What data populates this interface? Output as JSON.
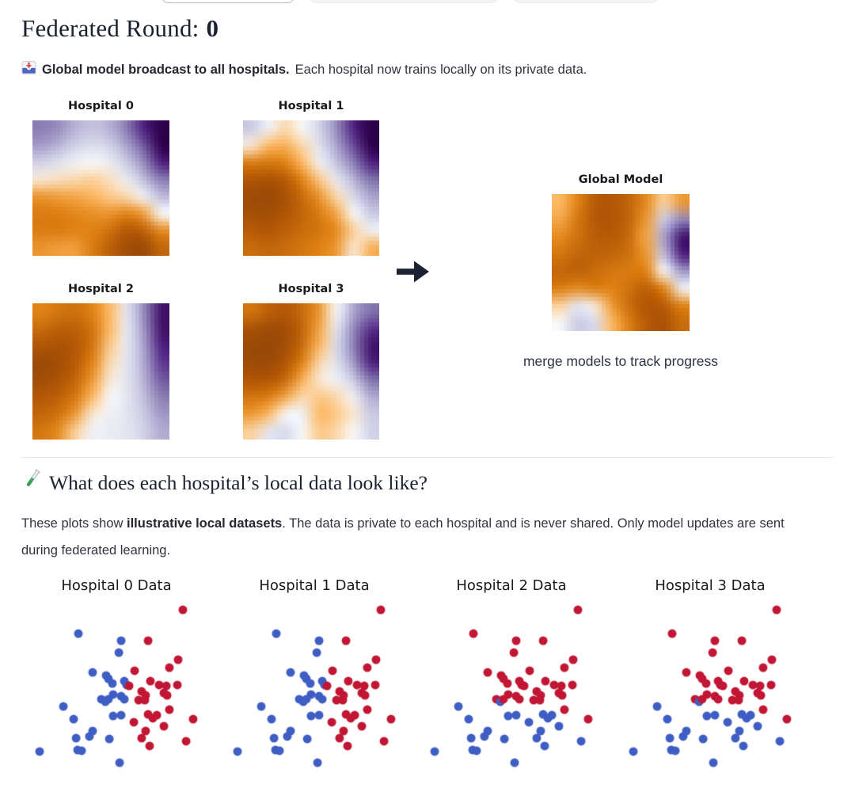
{
  "header": {
    "round_title": "Federated Round:",
    "round_number": "0"
  },
  "broadcast": {
    "icon": "inbox-tray-icon",
    "bold": "Global model broadcast to all hospitals.",
    "text": "Each hospital now trains locally on its private data."
  },
  "federated_panel": {
    "arrow_icon": "right-arrow-icon",
    "global_title": "Global Model",
    "caption": "merge models to track progress"
  },
  "local_data_section": {
    "icon": "test-tube-icon",
    "heading": "What does each hospital’s local data look like?",
    "body_pre": "These plots show ",
    "body_bold": "illustrative local datasets",
    "body_post": ". The data is private to each hospital and is never shared. Only model updates are sent during federated learning."
  },
  "chart_data": {
    "heatmaps": [
      {
        "id": "hm0",
        "type": "heatmap",
        "title": "Hospital 0",
        "colormap": "PuOr",
        "value_scale": "0=dark-orange, 0.5=white, 1=dark-purple",
        "grid": [
          [
            0.82,
            0.78,
            0.68,
            0.64,
            0.68,
            0.82,
            0.95,
            1.0
          ],
          [
            0.74,
            0.68,
            0.6,
            0.57,
            0.6,
            0.72,
            0.88,
            1.0
          ],
          [
            0.6,
            0.56,
            0.52,
            0.5,
            0.53,
            0.62,
            0.78,
            0.95
          ],
          [
            0.48,
            0.47,
            0.46,
            0.45,
            0.47,
            0.53,
            0.65,
            0.82
          ],
          [
            0.34,
            0.36,
            0.38,
            0.41,
            0.44,
            0.46,
            0.52,
            0.66
          ],
          [
            0.28,
            0.29,
            0.31,
            0.33,
            0.34,
            0.3,
            0.36,
            0.5
          ],
          [
            0.28,
            0.28,
            0.3,
            0.3,
            0.24,
            0.15,
            0.18,
            0.32
          ],
          [
            0.34,
            0.36,
            0.36,
            0.28,
            0.18,
            0.1,
            0.08,
            0.2
          ]
        ]
      },
      {
        "id": "hm1",
        "type": "heatmap",
        "title": "Hospital 1",
        "colormap": "PuOr",
        "grid": [
          [
            0.62,
            0.52,
            0.46,
            0.5,
            0.6,
            0.78,
            0.95,
            1.0
          ],
          [
            0.48,
            0.42,
            0.4,
            0.46,
            0.56,
            0.72,
            0.9,
            1.0
          ],
          [
            0.28,
            0.26,
            0.3,
            0.42,
            0.52,
            0.64,
            0.82,
            0.95
          ],
          [
            0.14,
            0.12,
            0.16,
            0.3,
            0.44,
            0.54,
            0.68,
            0.85
          ],
          [
            0.09,
            0.08,
            0.12,
            0.22,
            0.34,
            0.46,
            0.58,
            0.72
          ],
          [
            0.11,
            0.1,
            0.14,
            0.2,
            0.28,
            0.38,
            0.5,
            0.62
          ],
          [
            0.16,
            0.14,
            0.18,
            0.22,
            0.26,
            0.32,
            0.45,
            0.52
          ],
          [
            0.22,
            0.2,
            0.22,
            0.26,
            0.3,
            0.35,
            0.48,
            0.4
          ]
        ]
      },
      {
        "id": "hm2",
        "type": "heatmap",
        "title": "Hospital 2",
        "colormap": "PuOr",
        "grid": [
          [
            0.3,
            0.26,
            0.24,
            0.3,
            0.42,
            0.55,
            0.78,
            0.97
          ],
          [
            0.22,
            0.18,
            0.18,
            0.25,
            0.42,
            0.54,
            0.75,
            0.97
          ],
          [
            0.14,
            0.12,
            0.15,
            0.25,
            0.44,
            0.54,
            0.72,
            0.95
          ],
          [
            0.08,
            0.1,
            0.16,
            0.3,
            0.46,
            0.55,
            0.7,
            0.92
          ],
          [
            0.1,
            0.13,
            0.2,
            0.35,
            0.48,
            0.55,
            0.68,
            0.88
          ],
          [
            0.15,
            0.18,
            0.26,
            0.42,
            0.5,
            0.55,
            0.65,
            0.82
          ],
          [
            0.2,
            0.24,
            0.35,
            0.48,
            0.52,
            0.55,
            0.62,
            0.75
          ],
          [
            0.26,
            0.32,
            0.45,
            0.52,
            0.53,
            0.55,
            0.6,
            0.7
          ]
        ]
      },
      {
        "id": "hm3",
        "type": "heatmap",
        "title": "Hospital 3",
        "colormap": "PuOr",
        "grid": [
          [
            0.25,
            0.18,
            0.15,
            0.22,
            0.35,
            0.5,
            0.72,
            0.85
          ],
          [
            0.12,
            0.09,
            0.1,
            0.2,
            0.38,
            0.55,
            0.8,
            0.93
          ],
          [
            0.08,
            0.07,
            0.1,
            0.22,
            0.42,
            0.58,
            0.82,
            0.97
          ],
          [
            0.09,
            0.08,
            0.14,
            0.3,
            0.46,
            0.56,
            0.75,
            0.95
          ],
          [
            0.14,
            0.14,
            0.22,
            0.4,
            0.48,
            0.52,
            0.62,
            0.85
          ],
          [
            0.25,
            0.28,
            0.38,
            0.46,
            0.44,
            0.46,
            0.52,
            0.7
          ],
          [
            0.35,
            0.42,
            0.5,
            0.52,
            0.42,
            0.44,
            0.48,
            0.62
          ],
          [
            0.45,
            0.55,
            0.58,
            0.5,
            0.44,
            0.46,
            0.5,
            0.6
          ]
        ]
      },
      {
        "id": "hmg",
        "type": "heatmap",
        "title": "Global Model",
        "colormap": "PuOr",
        "grid": [
          [
            0.42,
            0.3,
            0.16,
            0.14,
            0.2,
            0.32,
            0.45,
            0.35
          ],
          [
            0.38,
            0.26,
            0.15,
            0.14,
            0.2,
            0.35,
            0.62,
            0.8
          ],
          [
            0.32,
            0.24,
            0.17,
            0.16,
            0.22,
            0.38,
            0.72,
            0.97
          ],
          [
            0.26,
            0.2,
            0.19,
            0.2,
            0.24,
            0.35,
            0.65,
            0.95
          ],
          [
            0.2,
            0.18,
            0.22,
            0.26,
            0.28,
            0.3,
            0.5,
            0.75
          ],
          [
            0.28,
            0.32,
            0.28,
            0.3,
            0.24,
            0.18,
            0.3,
            0.52
          ],
          [
            0.45,
            0.55,
            0.48,
            0.35,
            0.22,
            0.14,
            0.16,
            0.3
          ],
          [
            0.5,
            0.62,
            0.58,
            0.42,
            0.28,
            0.16,
            0.12,
            0.22
          ]
        ]
      }
    ],
    "colormap_stops": [
      "#7f3b08",
      "#b35806",
      "#e08214",
      "#fdb863",
      "#f7f7f7",
      "#d8daeb",
      "#b2abd2",
      "#8073ac",
      "#542788",
      "#2d004b"
    ],
    "scatter": {
      "type": "scatter",
      "titles": [
        "Hospital 0 Data",
        "Hospital 1 Data",
        "Hospital 2 Data",
        "Hospital 3 Data"
      ],
      "point_colors": {
        "blue": "#3f5ec4",
        "red": "#c11735"
      },
      "label_rule": "hospitals 0/1 use label c01 (blue-left / red-right); hospitals 2/3 use label c23 (red-top / blue-bottom)",
      "points": [
        [
          0.85,
          0.063,
          "R",
          "R"
        ],
        [
          0.3,
          0.188,
          "B",
          "R"
        ],
        [
          0.525,
          0.225,
          "B",
          "R"
        ],
        [
          0.667,
          0.225,
          "R",
          "R"
        ],
        [
          0.513,
          0.288,
          "B",
          "R"
        ],
        [
          0.825,
          0.325,
          "R",
          "R"
        ],
        [
          0.779,
          0.367,
          "R",
          "R"
        ],
        [
          0.375,
          0.392,
          "B",
          "R"
        ],
        [
          0.446,
          0.408,
          "B",
          "R"
        ],
        [
          0.458,
          0.425,
          "B",
          "R"
        ],
        [
          0.479,
          0.45,
          "B",
          "R"
        ],
        [
          0.596,
          0.383,
          "R",
          "R"
        ],
        [
          0.542,
          0.438,
          "B",
          "R"
        ],
        [
          0.554,
          0.458,
          "B",
          "R"
        ],
        [
          0.567,
          0.463,
          "R",
          "R"
        ],
        [
          0.679,
          0.438,
          "R",
          "R"
        ],
        [
          0.725,
          0.458,
          "R",
          "R"
        ],
        [
          0.763,
          0.463,
          "R",
          "R"
        ],
        [
          0.821,
          0.458,
          "R",
          "R"
        ],
        [
          0.633,
          0.492,
          "R",
          "R"
        ],
        [
          0.654,
          0.513,
          "R",
          "R"
        ],
        [
          0.75,
          0.5,
          "R",
          "R"
        ],
        [
          0.767,
          0.513,
          "R",
          "R"
        ],
        [
          0.483,
          0.508,
          "B",
          "R"
        ],
        [
          0.525,
          0.517,
          "B",
          "R"
        ],
        [
          0.542,
          0.533,
          "B",
          "R"
        ],
        [
          0.421,
          0.533,
          "B",
          "R"
        ],
        [
          0.442,
          0.546,
          "B",
          "B"
        ],
        [
          0.458,
          0.533,
          "B",
          "R"
        ],
        [
          0.617,
          0.538,
          "R",
          "R"
        ],
        [
          0.65,
          0.538,
          "R",
          "R"
        ],
        [
          0.221,
          0.571,
          "B",
          "B"
        ],
        [
          0.779,
          0.588,
          "R",
          "R"
        ],
        [
          0.483,
          0.621,
          "B",
          "B"
        ],
        [
          0.525,
          0.617,
          "B",
          "B"
        ],
        [
          0.592,
          0.654,
          "R",
          "B"
        ],
        [
          0.667,
          0.613,
          "R",
          "B"
        ],
        [
          0.692,
          0.633,
          "R",
          "B"
        ],
        [
          0.713,
          0.617,
          "R",
          "B"
        ],
        [
          0.75,
          0.675,
          "R",
          "B"
        ],
        [
          0.654,
          0.7,
          "R",
          "B"
        ],
        [
          0.275,
          0.638,
          "B",
          "B"
        ],
        [
          0.375,
          0.7,
          "B",
          "B"
        ],
        [
          0.358,
          0.729,
          "B",
          "B"
        ],
        [
          0.288,
          0.738,
          "B",
          "B"
        ],
        [
          0.463,
          0.742,
          "B",
          "B"
        ],
        [
          0.633,
          0.738,
          "R",
          "B"
        ],
        [
          0.675,
          0.779,
          "R",
          "B"
        ],
        [
          0.296,
          0.8,
          "B",
          "B"
        ],
        [
          0.317,
          0.804,
          "B",
          "B"
        ],
        [
          0.904,
          0.638,
          "R",
          "R"
        ],
        [
          0.867,
          0.754,
          "R",
          "B"
        ],
        [
          0.096,
          0.808,
          "B",
          "B"
        ],
        [
          0.517,
          0.867,
          "B",
          "B"
        ]
      ]
    }
  }
}
